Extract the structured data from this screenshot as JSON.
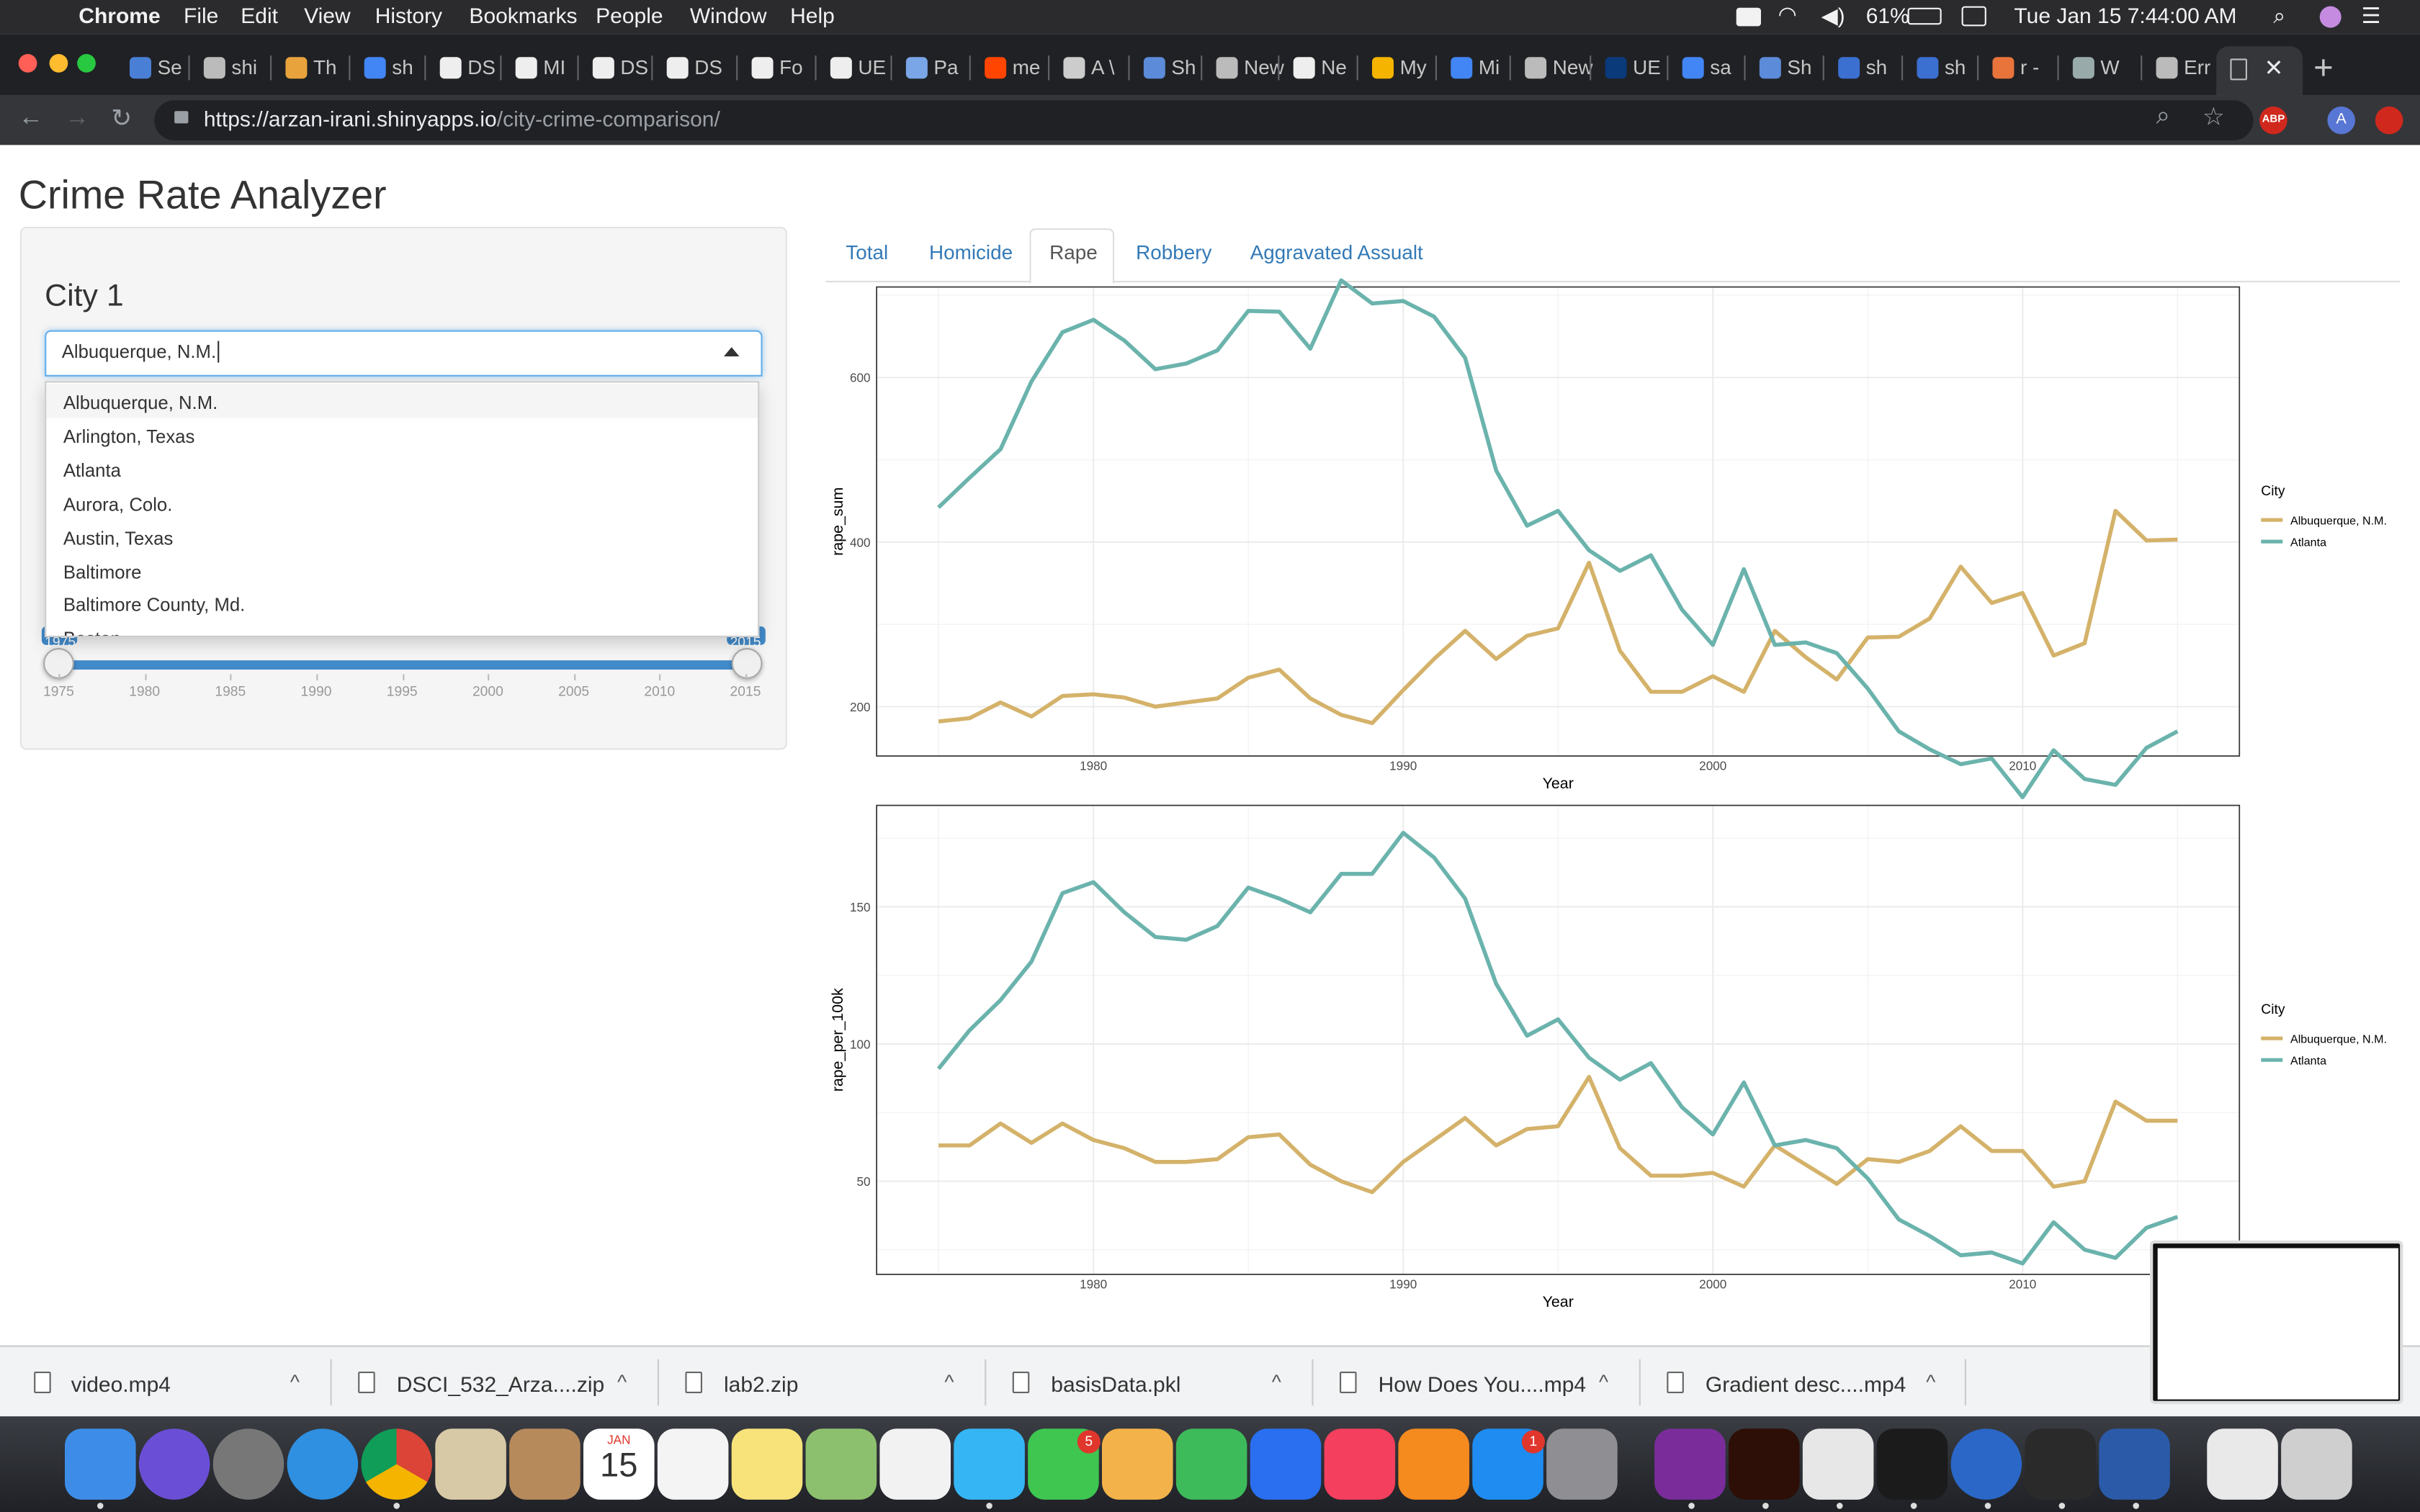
{
  "menubar": {
    "app": "Chrome",
    "items": [
      "File",
      "Edit",
      "View",
      "History",
      "Bookmarks",
      "People",
      "Window",
      "Help"
    ],
    "battery": "61%",
    "clock": "Tue Jan 15  7:44:00 AM"
  },
  "browser": {
    "tabs": [
      "Se",
      "shi",
      "Th",
      "sh",
      "DS",
      "MI",
      "DS",
      "DS",
      "Fo",
      "UE",
      "Pa",
      "me",
      "A \\",
      "Sh",
      "New Ta",
      "Ne",
      "My",
      "Mi",
      "New Ta",
      "UE",
      "sa",
      "Sh",
      "sh",
      "sh",
      "r -",
      "W",
      "Err"
    ],
    "url_host": "https://arzan-irani.shinyapps.io",
    "url_path": "/city-crime-comparison/",
    "abp": "ABP",
    "profile": "A"
  },
  "app": {
    "title": "Crime Rate Analyzer",
    "city_label": "City 1",
    "select_value": "Albuquerque, N.M.",
    "options": [
      "Albuquerque, N.M.",
      "Arlington, Texas",
      "Atlanta",
      "Aurora, Colo.",
      "Austin, Texas",
      "Baltimore",
      "Baltimore County, Md.",
      "Boston"
    ],
    "slider": {
      "min": 1975,
      "max": 2015,
      "low": 1975,
      "high": 2015,
      "low_label": "1975",
      "high_label": "2015",
      "ticks": [
        "1975",
        "1980",
        "1985",
        "1990",
        "1995",
        "2000",
        "2005",
        "2010",
        "2015"
      ]
    },
    "tabs": [
      "Total",
      "Homicide",
      "Rape",
      "Robbery",
      "Aggravated Assualt"
    ],
    "active_tab": "Rape"
  },
  "colors": {
    "albuquerque": "#d4b26a",
    "atlanta": "#6bb3ad",
    "link": "#337ab7",
    "slider": "#428bca"
  },
  "chart_data": [
    {
      "type": "line",
      "xlabel": "Year",
      "ylabel": "rape_sum",
      "legend_title": "City",
      "legend_position": "right",
      "xlim": [
        1973,
        2017
      ],
      "ylim": [
        140,
        710
      ],
      "xticks": [
        1980,
        1990,
        2000,
        2010
      ],
      "yticks": [
        200,
        400,
        600
      ],
      "x": [
        1975,
        1976,
        1977,
        1978,
        1979,
        1980,
        1981,
        1982,
        1983,
        1984,
        1985,
        1986,
        1987,
        1988,
        1989,
        1990,
        1991,
        1992,
        1993,
        1994,
        1995,
        1996,
        1997,
        1998,
        1999,
        2000,
        2001,
        2002,
        2003,
        2004,
        2005,
        2006,
        2007,
        2008,
        2009,
        2010,
        2011,
        2012,
        2013,
        2014,
        2015
      ],
      "series": [
        {
          "name": "Albuquerque, N.M.",
          "color": "#d4b26a",
          "values": [
            182,
            186,
            205,
            188,
            213,
            215,
            211,
            200,
            205,
            210,
            235,
            245,
            210,
            190,
            180,
            220,
            258,
            292,
            258,
            286,
            295,
            375,
            268,
            218,
            218,
            237,
            218,
            292,
            260,
            233,
            284,
            285,
            307,
            370,
            326,
            338,
            262,
            277,
            438,
            402,
            403
          ]
        },
        {
          "name": "Atlanta",
          "color": "#6bb3ad",
          "values": [
            442,
            478,
            513,
            595,
            655,
            670,
            645,
            610,
            617,
            633,
            681,
            680,
            635,
            718,
            690,
            693,
            674,
            624,
            487,
            420,
            438,
            390,
            365,
            384,
            318,
            275,
            367,
            275,
            278,
            265,
            222,
            170,
            148,
            130,
            137,
            90,
            147,
            112,
            105,
            150,
            170
          ]
        }
      ]
    },
    {
      "type": "line",
      "xlabel": "Year",
      "ylabel": "rape_per_100k",
      "legend_title": "City",
      "legend_position": "right",
      "xlim": [
        1973,
        2017
      ],
      "ylim": [
        16,
        187
      ],
      "xticks": [
        1980,
        1990,
        2000,
        2010
      ],
      "yticks": [
        50,
        100,
        150
      ],
      "x": [
        1975,
        1976,
        1977,
        1978,
        1979,
        1980,
        1981,
        1982,
        1983,
        1984,
        1985,
        1986,
        1987,
        1988,
        1989,
        1990,
        1991,
        1992,
        1993,
        1994,
        1995,
        1996,
        1997,
        1998,
        1999,
        2000,
        2001,
        2002,
        2003,
        2004,
        2005,
        2006,
        2007,
        2008,
        2009,
        2010,
        2011,
        2012,
        2013,
        2014,
        2015
      ],
      "series": [
        {
          "name": "Albuquerque, N.M.",
          "color": "#d4b26a",
          "values": [
            63,
            63,
            71,
            64,
            71,
            65,
            62,
            57,
            57,
            58,
            66,
            67,
            56,
            50,
            46,
            57,
            65,
            73,
            63,
            69,
            70,
            88,
            62,
            52,
            52,
            53,
            48,
            63,
            56,
            49,
            58,
            57,
            61,
            70,
            61,
            61,
            48,
            50,
            79,
            72,
            72
          ]
        },
        {
          "name": "Atlanta",
          "color": "#6bb3ad",
          "values": [
            91,
            105,
            116,
            130,
            155,
            159,
            148,
            139,
            138,
            143,
            157,
            153,
            148,
            162,
            162,
            177,
            168,
            153,
            122,
            103,
            109,
            95,
            87,
            93,
            77,
            67,
            86,
            63,
            65,
            62,
            51,
            36,
            30,
            23,
            24,
            20,
            35,
            25,
            22,
            33,
            37
          ]
        }
      ]
    }
  ],
  "downloads": [
    "video.mp4",
    "DSCI_532_Arza....zip",
    "lab2.zip",
    "basisData.pkl",
    "How Does You....mp4",
    "Gradient desc....mp4"
  ],
  "dock": {
    "calendar_month": "JAN",
    "calendar_day": "15",
    "badges": {
      "facetime": "5",
      "appstore": "1"
    },
    "apps": [
      "finder-icon",
      "siri-icon",
      "launchpad-icon",
      "safari-icon",
      "chrome-icon",
      "mail-icon",
      "contacts-icon",
      "calendar-icon",
      "reminders-icon",
      "notes-icon",
      "maps-icon",
      "photos-icon",
      "messages-icon",
      "facetime-icon",
      "keynote-icon",
      "numbers-icon",
      "presentation-icon",
      "itunes-icon",
      "books-icon",
      "appstore-icon",
      "settings-icon",
      "onenote-icon",
      "illustrator-icon",
      "slack-icon",
      "terminal-icon",
      "r-icon",
      "league-icon",
      "word-icon",
      "documents-icon",
      "trash-icon"
    ]
  }
}
